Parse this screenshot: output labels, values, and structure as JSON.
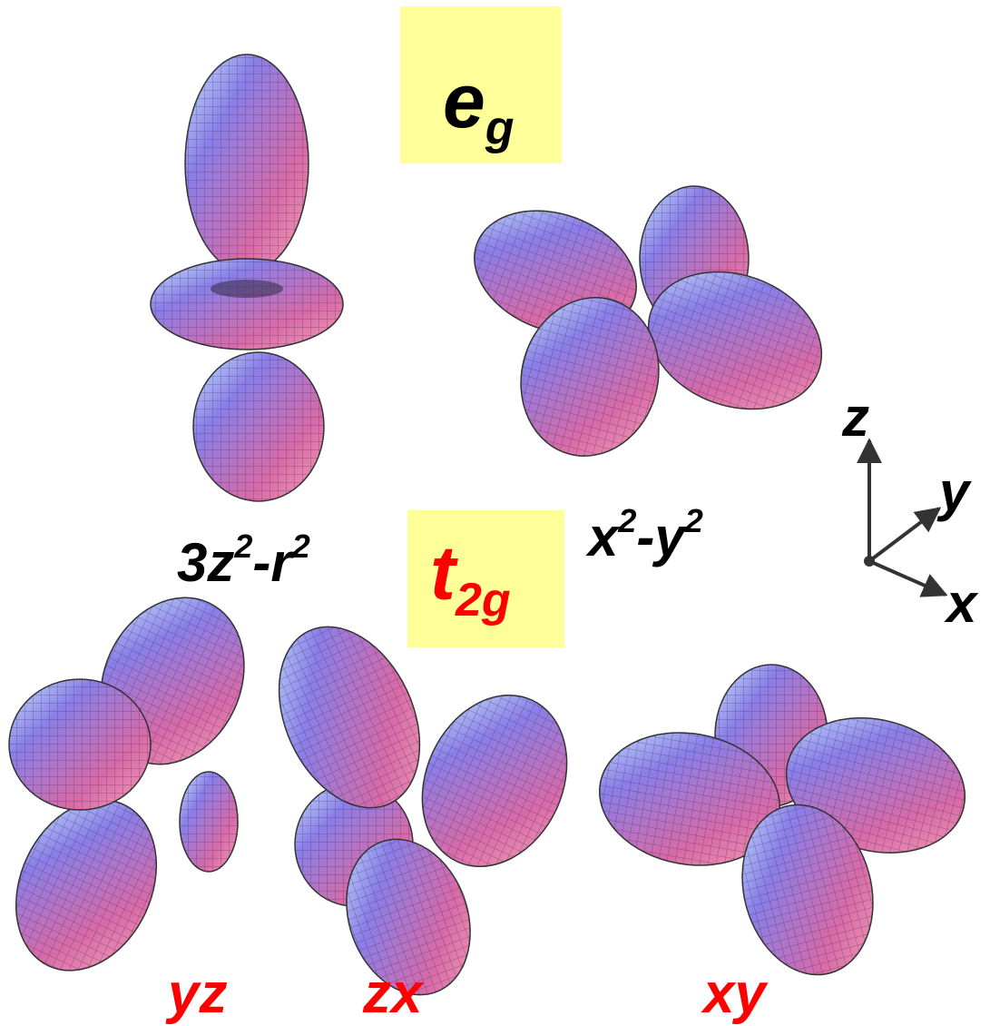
{
  "groups": {
    "eg": {
      "symbol": "e",
      "subscript": "g"
    },
    "t2g": {
      "symbol": "t",
      "subscript": "2g"
    }
  },
  "orbitals": [
    {
      "label": [
        "3z",
        "2",
        "-r",
        "2"
      ]
    },
    {
      "label": [
        "x",
        "2",
        "-y",
        "2"
      ]
    },
    {
      "label": [
        "yz"
      ]
    },
    {
      "label": [
        "zx"
      ]
    },
    {
      "label": [
        "xy"
      ]
    }
  ],
  "axes": [
    "z",
    "y",
    "x"
  ]
}
